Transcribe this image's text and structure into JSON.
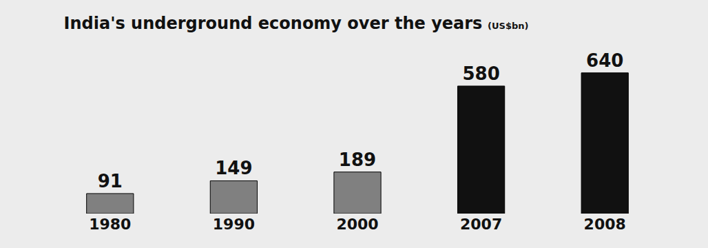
{
  "chart_data": {
    "type": "bar",
    "title": "India's underground economy over the years",
    "subtitle": "(US$bn)",
    "categories": [
      "1980",
      "1990",
      "2000",
      "2007",
      "2008"
    ],
    "values": [
      91,
      149,
      189,
      580,
      640
    ],
    "colors": [
      "#808080",
      "#808080",
      "#808080",
      "#111111",
      "#111111"
    ],
    "data_labels": true,
    "tick_labels": "x",
    "grid": false
  }
}
